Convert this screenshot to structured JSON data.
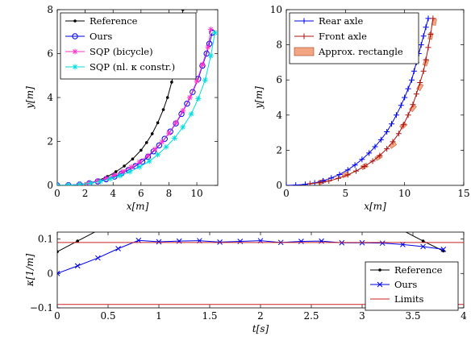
{
  "chart_data": [
    {
      "type": "line",
      "xlabel": "x[m]",
      "ylabel": "y[m]",
      "xlim": [
        0,
        11.5
      ],
      "ylim": [
        0,
        8
      ],
      "xticks": [
        0,
        2,
        4,
        6,
        8,
        10
      ],
      "yticks": [
        0,
        2,
        4,
        6,
        8
      ],
      "legend_position": "top-left",
      "series": [
        {
          "name": "Reference",
          "color": "#000000",
          "marker": "dot",
          "x": [
            0,
            0.8,
            1.6,
            2.4,
            3.0,
            3.6,
            4.2,
            4.8,
            5.4,
            6.0,
            6.4,
            6.8,
            7.2,
            7.6,
            7.9,
            8.2,
            8.5,
            8.8,
            9.0
          ],
          "y": [
            0,
            0.01,
            0.04,
            0.12,
            0.24,
            0.4,
            0.62,
            0.88,
            1.2,
            1.6,
            1.95,
            2.35,
            2.85,
            3.45,
            4.0,
            4.7,
            5.6,
            6.8,
            8.0
          ]
        },
        {
          "name": "Ours",
          "color": "#0000ee",
          "marker": "circle",
          "x": [
            0,
            0.8,
            1.6,
            2.3,
            2.9,
            3.5,
            4.1,
            4.6,
            5.1,
            5.6,
            6.1,
            6.5,
            6.9,
            7.3,
            7.7,
            8.1,
            8.5,
            8.9,
            9.3,
            9.7,
            10.1,
            10.4,
            10.7,
            10.9,
            11.1
          ],
          "y": [
            0,
            0.01,
            0.04,
            0.1,
            0.18,
            0.28,
            0.4,
            0.54,
            0.7,
            0.88,
            1.08,
            1.3,
            1.55,
            1.82,
            2.12,
            2.45,
            2.82,
            3.25,
            3.72,
            4.25,
            4.85,
            5.45,
            6.0,
            6.45,
            6.95
          ]
        },
        {
          "name": "SQP (bicycle)",
          "color": "#ff33cc",
          "marker": "star",
          "x": [
            0,
            0.8,
            1.6,
            2.3,
            2.9,
            3.5,
            4.1,
            4.7,
            5.3,
            5.9,
            6.5,
            7.0,
            7.5,
            8.0,
            8.5,
            9.0,
            9.5,
            10.0,
            10.4,
            10.8,
            11.0
          ],
          "y": [
            0,
            0.01,
            0.05,
            0.11,
            0.2,
            0.32,
            0.46,
            0.63,
            0.83,
            1.07,
            1.35,
            1.65,
            1.98,
            2.38,
            2.85,
            3.4,
            4.0,
            4.75,
            5.5,
            6.3,
            7.1
          ]
        },
        {
          "name": "SQP (nl. κ constr.)",
          "color": "#00dddd",
          "marker": "star",
          "x": [
            0,
            0.8,
            1.6,
            2.4,
            3.1,
            3.8,
            4.5,
            5.2,
            5.9,
            6.6,
            7.2,
            7.8,
            8.4,
            9.0,
            9.6,
            10.1,
            10.6,
            11.0,
            11.3
          ],
          "y": [
            0,
            0.01,
            0.04,
            0.1,
            0.18,
            0.3,
            0.44,
            0.62,
            0.84,
            1.1,
            1.4,
            1.75,
            2.15,
            2.65,
            3.25,
            3.95,
            4.8,
            5.9,
            6.95
          ]
        }
      ]
    },
    {
      "type": "line",
      "xlabel": "x[m]",
      "ylabel": "y[m]",
      "xlim": [
        0,
        15
      ],
      "ylim": [
        0,
        10
      ],
      "xticks": [
        0,
        5,
        10,
        15
      ],
      "yticks": [
        0,
        2,
        4,
        6,
        8,
        10
      ],
      "legend_position": "top-left",
      "series": [
        {
          "name": "Rear axle",
          "color": "#0000ee",
          "marker": "plus",
          "x": [
            0,
            0.8,
            1.6,
            2.4,
            3.1,
            3.8,
            4.5,
            5.2,
            5.8,
            6.4,
            7.0,
            7.5,
            8.0,
            8.5,
            8.9,
            9.3,
            9.7,
            10.0,
            10.3,
            10.6,
            10.8,
            11.0,
            11.2,
            11.4,
            11.6,
            11.8,
            12.0
          ],
          "y": [
            0,
            0.02,
            0.06,
            0.14,
            0.26,
            0.42,
            0.62,
            0.88,
            1.16,
            1.48,
            1.84,
            2.2,
            2.6,
            3.05,
            3.5,
            4.0,
            4.55,
            5.0,
            5.5,
            6.0,
            6.5,
            7.0,
            7.5,
            8.0,
            8.5,
            9.0,
            9.5
          ]
        },
        {
          "name": "Front axle",
          "color": "#aa1111",
          "marker": "plus",
          "x": [
            2.0,
            2.8,
            3.6,
            4.4,
            5.2,
            5.9,
            6.6,
            7.3,
            7.9,
            8.5,
            9.0,
            9.5,
            9.9,
            10.3,
            10.7,
            11.0,
            11.3,
            11.6,
            11.8,
            12.0,
            12.2,
            12.4
          ],
          "y": [
            0.1,
            0.15,
            0.25,
            0.4,
            0.6,
            0.82,
            1.08,
            1.38,
            1.7,
            2.08,
            2.48,
            2.95,
            3.45,
            4.0,
            4.6,
            5.2,
            5.85,
            6.5,
            7.15,
            7.85,
            8.6,
            9.5
          ]
        }
      ],
      "rectangles": {
        "name": "Approx. rectangle",
        "color": "#f4a582",
        "x": [
          3.0,
          5.0,
          6.6,
          7.8,
          9.0,
          9.9,
          10.7,
          11.3,
          11.8,
          12.2,
          12.5
        ],
        "y": [
          0.2,
          0.6,
          1.08,
          1.6,
          2.3,
          3.4,
          4.4,
          5.6,
          7.0,
          8.5,
          9.3
        ]
      }
    },
    {
      "type": "line",
      "xlabel": "t[s]",
      "ylabel": "κ[1/m]",
      "xlim": [
        0,
        4
      ],
      "ylim": [
        -0.1,
        0.12
      ],
      "xticks": [
        0,
        0.5,
        1,
        1.5,
        2,
        2.5,
        3,
        3.5,
        4
      ],
      "yticks": [
        0.1,
        0,
        -0.1
      ],
      "legend_position": "bottom-right",
      "series": [
        {
          "name": "Reference",
          "color": "#000000",
          "marker": "dot",
          "x": [
            0,
            0.2,
            0.4,
            0.6,
            0.8,
            1.0,
            1.2,
            1.4,
            1.6,
            1.8,
            2.0,
            2.2,
            2.4,
            2.6,
            2.8,
            3.0,
            3.2,
            3.4,
            3.6,
            3.8
          ],
          "y": [
            0.063,
            0.094,
            0.125,
            0.125,
            0.125,
            0.125,
            0.125,
            0.125,
            0.125,
            0.125,
            0.125,
            0.125,
            0.125,
            0.125,
            0.125,
            0.125,
            0.125,
            0.125,
            0.094,
            0.065
          ]
        },
        {
          "name": "Ours",
          "color": "#0000ee",
          "marker": "x",
          "x": [
            0,
            0.2,
            0.4,
            0.6,
            0.8,
            1.0,
            1.2,
            1.4,
            1.6,
            1.8,
            2.0,
            2.2,
            2.4,
            2.6,
            2.8,
            3.0,
            3.2,
            3.4,
            3.6,
            3.8
          ],
          "y": [
            0.0,
            0.022,
            0.045,
            0.072,
            0.096,
            0.092,
            0.094,
            0.095,
            0.091,
            0.093,
            0.095,
            0.09,
            0.093,
            0.094,
            0.089,
            0.089,
            0.088,
            0.084,
            0.078,
            0.07
          ]
        },
        {
          "name": "Limits",
          "color": "#cc2222",
          "marker": "none",
          "x": [
            0,
            4
          ],
          "y": [
            0.09,
            0.09
          ],
          "mirror_y": [
            -0.09,
            -0.09
          ]
        }
      ]
    }
  ]
}
